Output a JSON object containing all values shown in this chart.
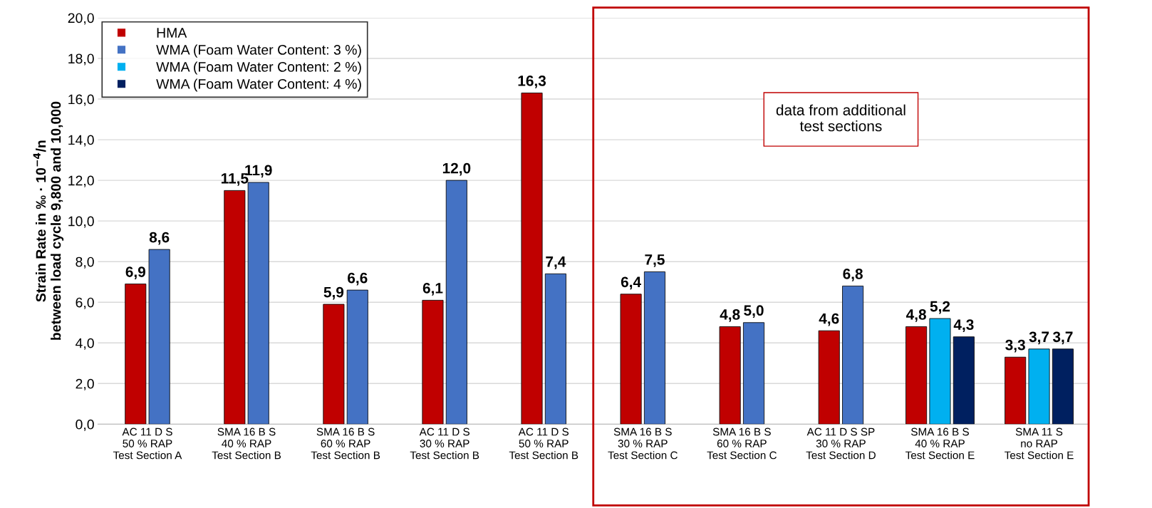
{
  "chart_data": {
    "type": "bar",
    "ylabel": "Strain Rate in ‰ · 10$^{−4}$/n\nbetween load cycle 9,800 and 10,000",
    "categories": [
      "AC 11 D S\n50 % RAP\nTest Section A",
      "SMA 16 B S\n40 % RAP\nTest Section B",
      "SMA 16 B S\n60 % RAP\nTest Section B",
      "AC 11 D S\n30 % RAP\nTest Section B",
      "AC 11 D S\n50 % RAP\nTest Section B",
      "SMA 16 B S\n30 % RAP\nTest Section C",
      "SMA 16 B S\n60 % RAP\nTest Section C",
      "AC 11 D S SP\n30 % RAP\nTest Section D",
      "SMA 16 B S\n40 % RAP\nTest Section E",
      "SMA 11 S\nno RAP\nTest Section E"
    ],
    "series": [
      {
        "name": "HMA",
        "color": "#c00000",
        "values": [
          6.9,
          11.5,
          5.9,
          6.1,
          16.3,
          6.4,
          4.8,
          4.6,
          4.8,
          3.3
        ],
        "value_labels": [
          "6,9",
          "11,5",
          "5,9",
          "6,1",
          "16,3",
          "6,4",
          "4,8",
          "4,6",
          "4,8",
          "3,3"
        ]
      },
      {
        "name": "WMA (Foam Water Content: 3 %)",
        "color": "#4472c4",
        "values": [
          8.6,
          11.9,
          6.6,
          12.0,
          7.4,
          7.5,
          5.0,
          6.8,
          null,
          null
        ],
        "value_labels": [
          "8,6",
          "11,9",
          "6,6",
          "12,0",
          "7,4",
          "7,5",
          "5,0",
          "6,8",
          null,
          null
        ]
      },
      {
        "name": "WMA (Foam Water Content: 2 %)",
        "color": "#00b0f0",
        "values": [
          null,
          null,
          null,
          null,
          null,
          null,
          null,
          null,
          5.2,
          3.7
        ],
        "value_labels": [
          null,
          null,
          null,
          null,
          null,
          null,
          null,
          null,
          "5,2",
          "3,7"
        ]
      },
      {
        "name": "WMA (Foam Water Content: 4 %)",
        "color": "#002060",
        "values": [
          null,
          null,
          null,
          null,
          null,
          null,
          null,
          null,
          4.3,
          3.7
        ],
        "value_labels": [
          null,
          null,
          null,
          null,
          null,
          null,
          null,
          null,
          "4,3",
          "3,7"
        ]
      }
    ],
    "ylim": [
      0,
      20
    ],
    "yticks": [
      {
        "value": 0,
        "label": "0,0"
      },
      {
        "value": 2,
        "label": "2,0"
      },
      {
        "value": 4,
        "label": "4,0"
      },
      {
        "value": 6,
        "label": "6,0"
      },
      {
        "value": 8,
        "label": "8,0"
      },
      {
        "value": 10,
        "label": "10,0"
      },
      {
        "value": 12,
        "label": "12,0"
      },
      {
        "value": 14,
        "label": "14,0"
      },
      {
        "value": 16,
        "label": "16,0"
      },
      {
        "value": 18,
        "label": "18,0"
      },
      {
        "value": 20,
        "label": "20,0"
      }
    ],
    "annotations": [
      "data from additional\ntest sections"
    ],
    "grid": "y",
    "legend": "top left"
  }
}
